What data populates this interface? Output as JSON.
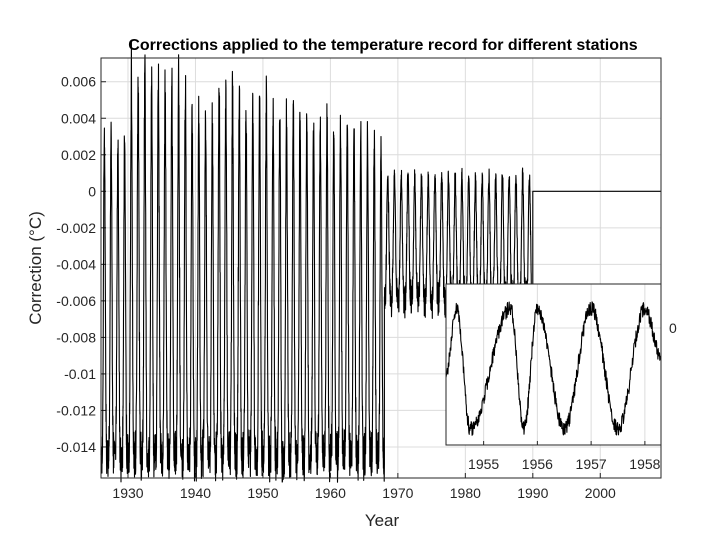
{
  "chart_data": [
    {
      "type": "line",
      "title": "Corrections applied to the temperature record for different stations",
      "xlabel": "Year",
      "ylabel": "Correction (°C)",
      "xlim": [
        1926,
        2009
      ],
      "ylim": [
        -0.0157,
        0.0073
      ],
      "grid": true,
      "x_ticks": [
        1930,
        1940,
        1950,
        1960,
        1970,
        1980,
        1990,
        2000
      ],
      "x_tick_labels": [
        "1930",
        "1940",
        "1950",
        "1960",
        "1970",
        "1980",
        "1990",
        "2000"
      ],
      "y_ticks": [
        0.006,
        0.004,
        0.002,
        0,
        -0.002,
        -0.004,
        -0.006,
        -0.008,
        -0.01,
        -0.012,
        -0.014
      ],
      "y_tick_labels": [
        "0.006",
        "0.004",
        "0.002",
        "0",
        "-0.002",
        "-0.004",
        "-0.006",
        "-0.008",
        "-0.01",
        "-0.012",
        "-0.014"
      ],
      "series": [
        {
          "segments": [
            {
              "x_range": [
                1926,
                1968
              ],
              "description_period_years": 1,
              "max": 0.0072,
              "min": -0.0157,
              "approx_peak_values": [
                0.003,
                0.007,
                0.0065,
                0.0045,
                0.0065,
                0.0055,
                0.005,
                0.0045,
                0.004,
                0.003
              ]
            },
            {
              "x_range": [
                1968,
                1990
              ],
              "description_period_years": 1,
              "max": 0.0012,
              "min": -0.0068
            },
            {
              "x_range": [
                1990,
                2009
              ],
              "value": 0
            }
          ]
        }
      ]
    },
    {
      "type": "line",
      "inset": true,
      "x_ticks": [
        1955,
        1956,
        1957,
        1958
      ],
      "x_tick_labels": [
        "1955",
        "1956",
        "1957",
        "1958"
      ],
      "xlim": [
        1954.3,
        1958.3
      ],
      "y_tick_labels": [
        "0"
      ],
      "grid": true,
      "peaks_at": [
        1954.5,
        1955.5,
        1956.0,
        1957.0,
        1958.0
      ],
      "troughs_at": [
        1954.75,
        1955.75,
        1956.5,
        1957.5
      ]
    }
  ]
}
